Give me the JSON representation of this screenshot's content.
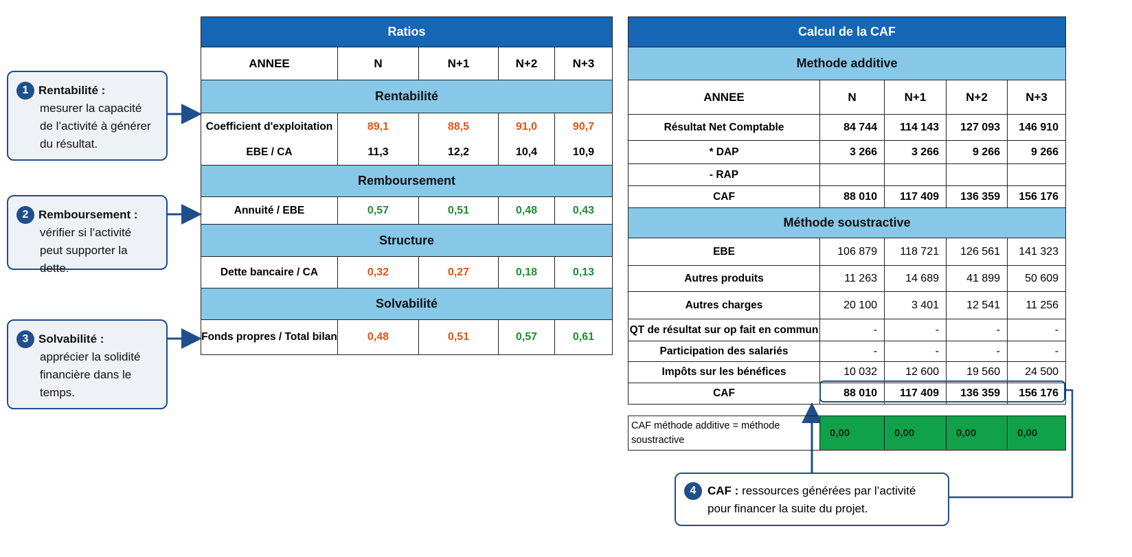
{
  "callouts": [
    {
      "num": "1",
      "title": "Rentabilité :",
      "text": "mesurer la capacité de l’activité à générer du résultat."
    },
    {
      "num": "2",
      "title": "Remboursement :",
      "text": "vérifier si l’activité peut supporter la dette."
    },
    {
      "num": "3",
      "title": "Solvabilité :",
      "text": "apprécier la solidité financière dans le temps."
    },
    {
      "num": "4",
      "title": "CAF :",
      "text_line1": "ressources générées par l’activité",
      "text_line2": "pour financer la suite du projet."
    }
  ],
  "ratios": {
    "title": "Ratios",
    "headers": [
      "ANNEE",
      "N",
      "N+1",
      "N+2",
      "N+3"
    ],
    "sections": [
      {
        "title": "Rentabilité",
        "rows": [
          {
            "label": "Coefficient d'exploitation",
            "values": [
              "89,1",
              "88,5",
              "91,0",
              "90,7"
            ],
            "colors": [
              "red",
              "red",
              "red",
              "red"
            ]
          },
          {
            "label": "EBE / CA",
            "values": [
              "11,3",
              "12,2",
              "10,4",
              "10,9"
            ],
            "colors": [
              "black",
              "black",
              "black",
              "black"
            ]
          }
        ]
      },
      {
        "title": "Remboursement",
        "rows": [
          {
            "label": "Annuité / EBE",
            "values": [
              "0,57",
              "0,51",
              "0,48",
              "0,43"
            ],
            "colors": [
              "green",
              "green",
              "green",
              "green"
            ]
          }
        ]
      },
      {
        "title": "Structure",
        "rows": [
          {
            "label": "Dette bancaire / CA",
            "values": [
              "0,32",
              "0,27",
              "0,18",
              "0,13"
            ],
            "colors": [
              "red",
              "red",
              "green",
              "green"
            ]
          }
        ]
      },
      {
        "title": "Solvabilité",
        "rows": [
          {
            "label": "Fonds propres / Total bilan",
            "values": [
              "0,48",
              "0,51",
              "0,57",
              "0,61"
            ],
            "colors": [
              "red",
              "red",
              "green",
              "green"
            ]
          }
        ]
      }
    ]
  },
  "caf": {
    "title": "Calcul de la CAF",
    "additive_title": "Methode additive",
    "headers": [
      "ANNEE",
      "N",
      "N+1",
      "N+2",
      "N+3"
    ],
    "additive_rows": [
      {
        "label": "Résultat Net Comptable",
        "values": [
          "84 744",
          "114 143",
          "127 093",
          "146 910"
        ]
      },
      {
        "label": "* DAP",
        "values": [
          "3 266",
          "3 266",
          "9 266",
          "9 266"
        ]
      },
      {
        "label": "- RAP",
        "values": [
          "",
          "",
          "",
          ""
        ]
      },
      {
        "label": "CAF",
        "values": [
          "88 010",
          "117 409",
          "136 359",
          "156 176"
        ]
      }
    ],
    "soustractive_title": "Méthode soustractive",
    "soustractive_rows": [
      {
        "label": "EBE",
        "values": [
          "106 879",
          "118 721",
          "126 561",
          "141 323"
        ]
      },
      {
        "label": "Autres produits",
        "values": [
          "11 263",
          "14 689",
          "41 899",
          "50 609"
        ]
      },
      {
        "label": "Autres charges",
        "values": [
          "20 100",
          "3 401",
          "12 541",
          "11 256"
        ]
      },
      {
        "label": "QT de résultat sur op fait en commun",
        "values": [
          "-",
          "-",
          "-",
          "-"
        ]
      },
      {
        "label": "Participation des salariés",
        "values": [
          "-",
          "-",
          "-",
          "-"
        ]
      },
      {
        "label": "Impôts sur les bénéfices",
        "values": [
          "10 032",
          "12 600",
          "19 560",
          "24 500"
        ]
      },
      {
        "label": "CAF",
        "values": [
          "88 010",
          "117 409",
          "136 359",
          "156 176"
        ]
      }
    ],
    "check_label": "CAF méthode additive = méthode soustractive",
    "check_values": [
      "0,00",
      "0,00",
      "0,00",
      "0,00"
    ],
    "check_color": "#10a14a"
  },
  "colors": {
    "blue_bar": "#1566b5",
    "section": "#87c8e8",
    "red": "#e05416",
    "green": "#1e8e2e",
    "callout_border": "#1f4e8c"
  }
}
